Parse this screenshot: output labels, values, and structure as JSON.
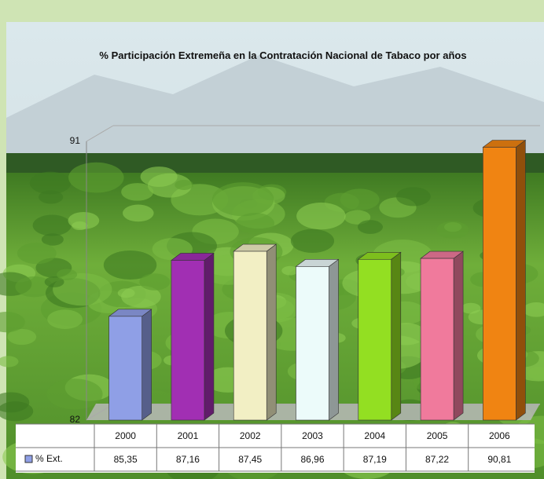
{
  "chart_data": {
    "type": "bar3d",
    "title": "% Participación Extremeña en la Contratación Nacional de Tabaco por años",
    "categories": [
      "2000",
      "2001",
      "2002",
      "2003",
      "2004",
      "2005",
      "2006"
    ],
    "series": [
      {
        "name": "% Ext.",
        "color": "#8f9fe6",
        "values": [
          85.35,
          87.16,
          87.45,
          86.96,
          87.19,
          87.22,
          90.81
        ],
        "value_labels": [
          "85,35",
          "87,16",
          "87,45",
          "86,96",
          "87,19",
          "87,22",
          "90,81"
        ]
      }
    ],
    "colors": [
      "#8f9fe6",
      "#a12fb3",
      "#f2efc4",
      "#ecfbfa",
      "#93df22",
      "#f07a9c",
      "#f08412"
    ],
    "ylim": [
      82,
      91
    ],
    "yticks": [
      82,
      91
    ]
  }
}
